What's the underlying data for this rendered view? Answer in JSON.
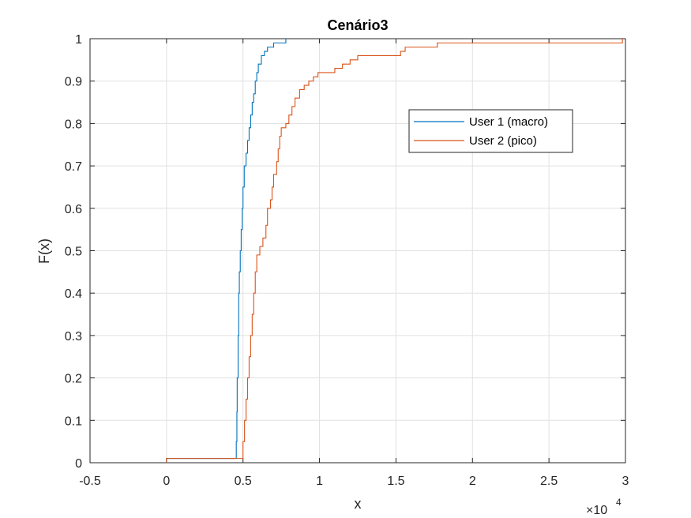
{
  "chart_data": {
    "type": "line",
    "title": "Cenário3",
    "xlabel": "x",
    "ylabel": "F(x)",
    "x_exponent_label": "×10",
    "x_exponent_power": "4",
    "x_scale": 10000,
    "xlim": [
      -0.5,
      3
    ],
    "ylim": [
      0,
      1
    ],
    "xticks": [
      -0.5,
      0,
      0.5,
      1,
      1.5,
      2,
      2.5,
      3
    ],
    "xtick_labels": [
      "-0.5",
      "0",
      "0.5",
      "1",
      "1.5",
      "2",
      "2.5",
      "3"
    ],
    "yticks": [
      0,
      0.1,
      0.2,
      0.3,
      0.4,
      0.5,
      0.6,
      0.7,
      0.8,
      0.9,
      1
    ],
    "ytick_labels": [
      "0",
      "0.1",
      "0.2",
      "0.3",
      "0.4",
      "0.5",
      "0.6",
      "0.7",
      "0.8",
      "0.9",
      "1"
    ],
    "grid": true,
    "legend_position": "top-right (inside)",
    "series": [
      {
        "name": "User 1 (macro)",
        "color": "#0072BD",
        "points": [
          [
            0,
            0
          ],
          [
            0,
            0.01
          ],
          [
            4500,
            0.01
          ],
          [
            4560,
            0.05
          ],
          [
            4600,
            0.12
          ],
          [
            4620,
            0.2
          ],
          [
            4680,
            0.3
          ],
          [
            4720,
            0.4
          ],
          [
            4760,
            0.45
          ],
          [
            4820,
            0.5
          ],
          [
            4880,
            0.55
          ],
          [
            4950,
            0.6
          ],
          [
            5000,
            0.65
          ],
          [
            5080,
            0.7
          ],
          [
            5200,
            0.73
          ],
          [
            5300,
            0.76
          ],
          [
            5400,
            0.79
          ],
          [
            5500,
            0.82
          ],
          [
            5600,
            0.85
          ],
          [
            5700,
            0.87
          ],
          [
            5800,
            0.9
          ],
          [
            5900,
            0.92
          ],
          [
            6000,
            0.94
          ],
          [
            6200,
            0.96
          ],
          [
            6400,
            0.97
          ],
          [
            6600,
            0.98
          ],
          [
            7000,
            0.99
          ],
          [
            7800,
            0.99
          ],
          [
            7800,
            1
          ]
        ]
      },
      {
        "name": "User 2 (pico)",
        "color": "#D95319",
        "points": [
          [
            0,
            0
          ],
          [
            0,
            0.01
          ],
          [
            4900,
            0.01
          ],
          [
            5000,
            0.05
          ],
          [
            5100,
            0.1
          ],
          [
            5200,
            0.15
          ],
          [
            5300,
            0.2
          ],
          [
            5400,
            0.25
          ],
          [
            5500,
            0.3
          ],
          [
            5600,
            0.35
          ],
          [
            5700,
            0.4
          ],
          [
            5800,
            0.45
          ],
          [
            5900,
            0.49
          ],
          [
            6100,
            0.51
          ],
          [
            6300,
            0.53
          ],
          [
            6500,
            0.56
          ],
          [
            6600,
            0.6
          ],
          [
            6800,
            0.62
          ],
          [
            6900,
            0.65
          ],
          [
            7000,
            0.68
          ],
          [
            7200,
            0.71
          ],
          [
            7300,
            0.74
          ],
          [
            7400,
            0.77
          ],
          [
            7500,
            0.79
          ],
          [
            7800,
            0.8
          ],
          [
            8000,
            0.82
          ],
          [
            8200,
            0.84
          ],
          [
            8400,
            0.86
          ],
          [
            8700,
            0.88
          ],
          [
            9000,
            0.89
          ],
          [
            9300,
            0.9
          ],
          [
            9600,
            0.91
          ],
          [
            9900,
            0.92
          ],
          [
            11000,
            0.93
          ],
          [
            11500,
            0.94
          ],
          [
            12000,
            0.95
          ],
          [
            12500,
            0.96
          ],
          [
            15000,
            0.96
          ],
          [
            15300,
            0.97
          ],
          [
            15600,
            0.98
          ],
          [
            17600,
            0.98
          ],
          [
            17700,
            0.99
          ],
          [
            29800,
            0.99
          ],
          [
            29800,
            1
          ]
        ]
      }
    ]
  }
}
